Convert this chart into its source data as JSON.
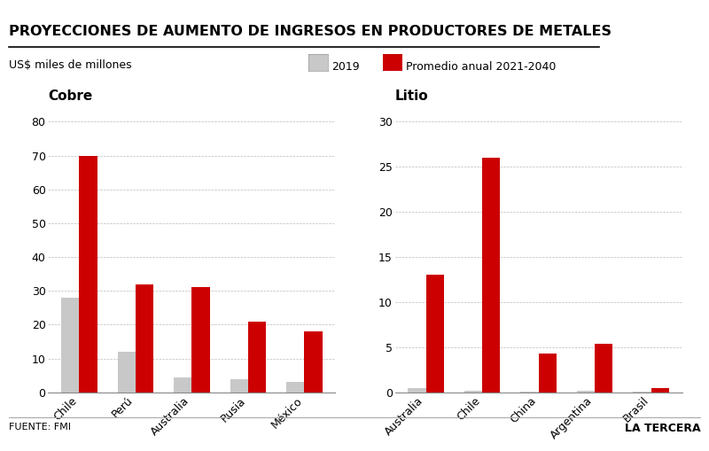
{
  "title": "PROYECCIONES DE AUMENTO DE INGRESOS EN PRODUCTORES DE METALES",
  "subtitle": "US$ miles de millones",
  "legend_2019": "2019",
  "legend_promedio": "Promedio anual 2021-2040",
  "cobre_label": "Cobre",
  "litio_label": "Litio",
  "cobre_categories": [
    "Chile",
    "Perú",
    "Australia",
    "Rusia",
    "México"
  ],
  "cobre_2019": [
    28,
    12,
    4.5,
    4,
    3
  ],
  "cobre_promedio": [
    70,
    32,
    31,
    21,
    18
  ],
  "cobre_ylim": [
    0,
    80
  ],
  "cobre_yticks": [
    0,
    10,
    20,
    30,
    40,
    50,
    60,
    70,
    80
  ],
  "litio_categories": [
    "Australia",
    "Chile",
    "China",
    "Argentina",
    "Brasil"
  ],
  "litio_2019": [
    0.5,
    0.2,
    0.1,
    0.2,
    0.1
  ],
  "litio_promedio": [
    13,
    26,
    4.3,
    5.4,
    0.5
  ],
  "litio_ylim": [
    0,
    30
  ],
  "litio_yticks": [
    0,
    5,
    10,
    15,
    20,
    25,
    30
  ],
  "color_2019": "#c8c8c8",
  "color_promedio": "#cc0000",
  "fuente": "FUENTE: FMI",
  "brand": "LA TERCERA",
  "background_color": "#ffffff",
  "bar_width": 0.32,
  "tick_fontsize": 9,
  "category_fontsize": 9
}
